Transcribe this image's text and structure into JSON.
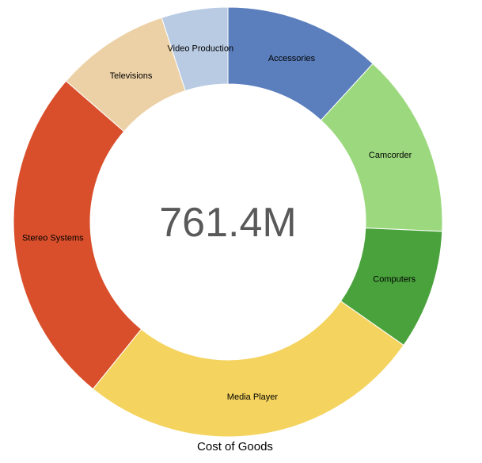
{
  "page": {
    "background_color": "#ffffff"
  },
  "chart_data": {
    "type": "pie",
    "variant": "donut",
    "title": "Cost of Goods",
    "center_total_label": "761.4M",
    "total_value_M": 761.4,
    "unit": "M",
    "legend_position": "none",
    "labels_on_slices": true,
    "center_text_color": "#595959",
    "label_text_color": "#000000",
    "segments": [
      {
        "label": "Accessories",
        "start_deg": 0,
        "end_deg": 42.5,
        "percent_est": 11.8,
        "value_M_est": 89.9,
        "color": "#5b7fbd"
      },
      {
        "label": "Camcorder",
        "start_deg": 42.5,
        "end_deg": 92.5,
        "percent_est": 13.9,
        "value_M_est": 105.8,
        "color": "#9cd97e"
      },
      {
        "label": "Computers",
        "start_deg": 92.5,
        "end_deg": 125,
        "percent_est": 9.0,
        "value_M_est": 68.7,
        "color": "#4aa23c"
      },
      {
        "label": "Media Player",
        "start_deg": 125,
        "end_deg": 219,
        "percent_est": 26.1,
        "value_M_est": 198.8,
        "color": "#f4d35e"
      },
      {
        "label": "Stereo Systems",
        "start_deg": 219,
        "end_deg": 311,
        "percent_est": 25.6,
        "value_M_est": 194.6,
        "color": "#d94f2b"
      },
      {
        "label": "Televisions",
        "start_deg": 311,
        "end_deg": 342,
        "percent_est": 8.6,
        "value_M_est": 65.6,
        "color": "#ecd1a6"
      },
      {
        "label": "Video Production",
        "start_deg": 342,
        "end_deg": 360,
        "percent_est": 5.0,
        "value_M_est": 38.1,
        "color": "#b8cbe3"
      }
    ]
  }
}
